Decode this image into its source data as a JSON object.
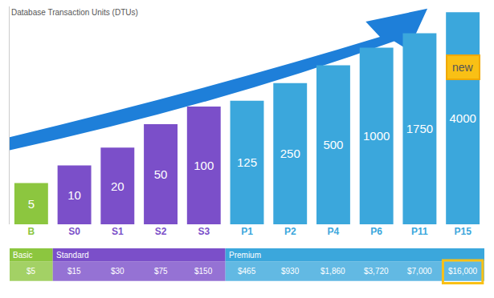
{
  "chart_data": {
    "type": "bar",
    "ylabel": "Database Transaction Units (DTUs)",
    "categories": [
      "B",
      "S0",
      "S1",
      "S2",
      "S3",
      "P1",
      "P2",
      "P4",
      "P6",
      "P11",
      "P15"
    ],
    "values": [
      5,
      10,
      20,
      50,
      100,
      125,
      250,
      500,
      1000,
      1750,
      4000
    ],
    "colors": [
      "#8cc63f",
      "#7b4fc9",
      "#7b4fc9",
      "#7b4fc9",
      "#7b4fc9",
      "#3ba7dc",
      "#3ba7dc",
      "#3ba7dc",
      "#3ba7dc",
      "#3ba7dc",
      "#3ba7dc"
    ],
    "data_labels": true,
    "log": "y",
    "ylim": [
      1,
      5000
    ],
    "yticks": [],
    "tick_labels": "x",
    "grid": false,
    "prices": {
      "values": [
        5,
        15,
        30,
        75,
        150,
        465,
        930,
        1860,
        3720,
        7000,
        16000
      ],
      "value_labels": [
        "$5",
        "$15",
        "$30",
        "$75",
        "$150",
        "$465",
        "$930",
        "$1,860",
        "$3,720",
        "$7,000",
        "$16,000"
      ]
    },
    "tiers": [
      {
        "name": "Basic",
        "color": "#8cc63f",
        "categories": [
          "B"
        ]
      },
      {
        "name": "Standard",
        "color": "#7b4fc9",
        "categories": [
          "S0",
          "S1",
          "S2",
          "S3"
        ]
      },
      {
        "name": "Premium",
        "color": "#3ba7dc",
        "categories": [
          "P1",
          "P2",
          "P4",
          "P6",
          "P11",
          "P15"
        ]
      }
    ],
    "annotations": [
      {
        "category": "P15",
        "text": "new"
      }
    ]
  }
}
